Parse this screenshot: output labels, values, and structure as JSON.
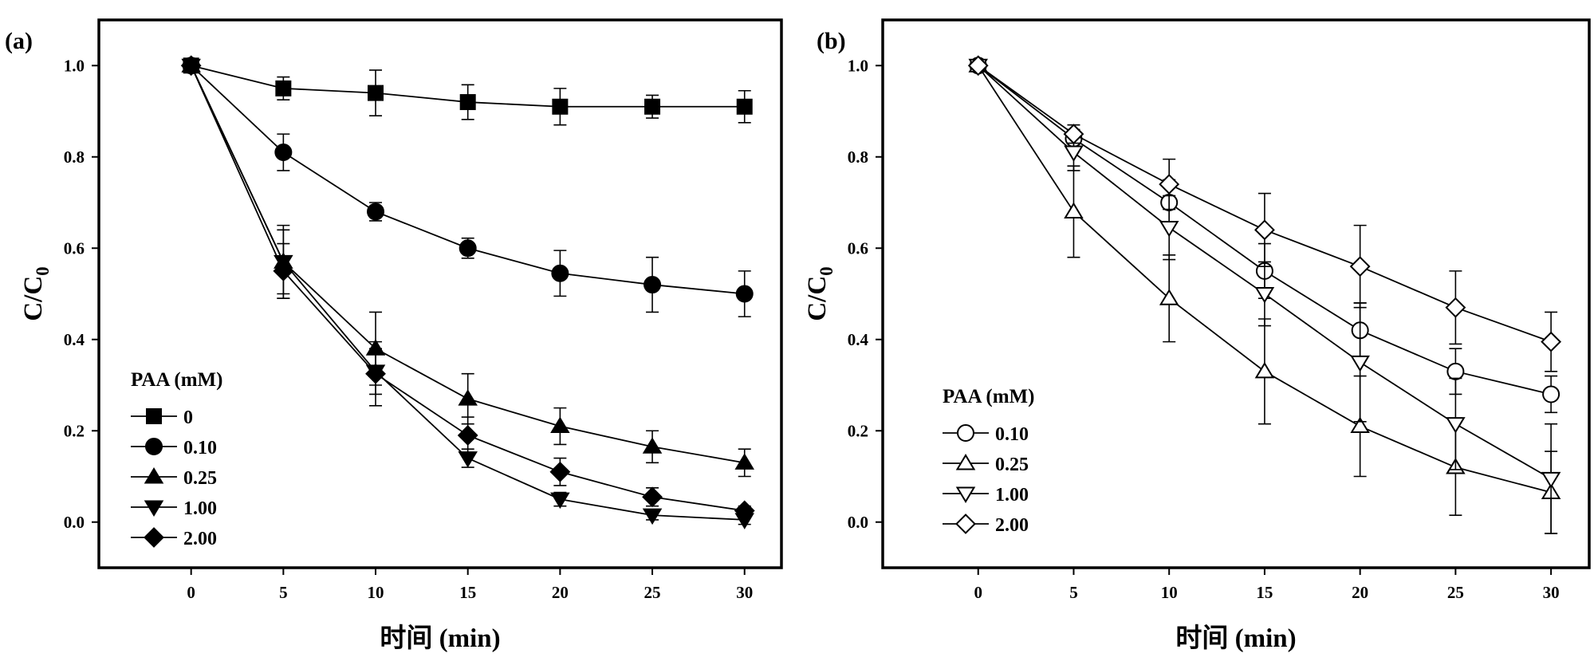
{
  "chart_data": [
    {
      "type": "line",
      "panel_label": "(a)",
      "xlabel": "时间 (min)",
      "ylabel_main": "C/C",
      "ylabel_sub": "0",
      "xlim": [
        -5,
        32
      ],
      "ylim": [
        -0.1,
        1.1
      ],
      "x_ticks": [
        0,
        5,
        10,
        15,
        20,
        25,
        30
      ],
      "y_ticks": [
        "0.0",
        "0.2",
        "0.4",
        "0.6",
        "0.8",
        "1.0"
      ],
      "legend_title": "PAA (mM)",
      "legend_position": "bottom-left",
      "marker_fill": "#000000",
      "x": [
        0,
        5,
        10,
        15,
        20,
        25,
        30
      ],
      "series": [
        {
          "name": "0",
          "marker": "square",
          "values": [
            1.0,
            0.95,
            0.94,
            0.92,
            0.91,
            0.91,
            0.91
          ],
          "errors": [
            0,
            0.025,
            0.05,
            0.038,
            0.04,
            0.025,
            0.035
          ]
        },
        {
          "name": "0.10",
          "marker": "circle",
          "values": [
            1.0,
            0.81,
            0.68,
            0.6,
            0.545,
            0.52,
            0.5
          ],
          "errors": [
            0,
            0.04,
            0.02,
            0.022,
            0.05,
            0.06,
            0.05
          ]
        },
        {
          "name": "0.25",
          "marker": "triangle-up",
          "values": [
            1.0,
            0.57,
            0.38,
            0.27,
            0.21,
            0.165,
            0.13
          ],
          "errors": [
            0,
            0.08,
            0.08,
            0.055,
            0.04,
            0.035,
            0.03
          ]
        },
        {
          "name": "1.00",
          "marker": "triangle-down",
          "values": [
            1.0,
            0.57,
            0.33,
            0.14,
            0.05,
            0.015,
            0.005
          ],
          "errors": [
            0,
            0.07,
            0.05,
            0.02,
            0.015,
            0.01,
            0.01
          ]
        },
        {
          "name": "2.00",
          "marker": "diamond",
          "values": [
            1.0,
            0.55,
            0.325,
            0.19,
            0.11,
            0.055,
            0.025
          ],
          "errors": [
            0,
            0.06,
            0.07,
            0.04,
            0.03,
            0.02,
            0.01
          ]
        }
      ]
    },
    {
      "type": "line",
      "panel_label": "(b)",
      "xlabel": "时间 (min)",
      "ylabel_main": "C/C",
      "ylabel_sub": "0",
      "xlim": [
        -5,
        32
      ],
      "ylim": [
        -0.1,
        1.1
      ],
      "x_ticks": [
        0,
        5,
        10,
        15,
        20,
        25,
        30
      ],
      "y_ticks": [
        "0.0",
        "0.2",
        "0.4",
        "0.6",
        "0.8",
        "1.0"
      ],
      "legend_title": "PAA (mM)",
      "legend_position": "bottom-left",
      "marker_fill": "#ffffff",
      "x": [
        0,
        5,
        10,
        15,
        20,
        25,
        30
      ],
      "series": [
        {
          "name": "0.10",
          "marker": "circle",
          "values": [
            1.0,
            0.84,
            0.7,
            0.55,
            0.42,
            0.33,
            0.28
          ],
          "errors": [
            0,
            0.02,
            0.05,
            0.06,
            0.06,
            0.05,
            0.04
          ]
        },
        {
          "name": "0.25",
          "marker": "triangle-up",
          "values": [
            1.0,
            0.68,
            0.49,
            0.33,
            0.21,
            0.12,
            0.065
          ],
          "errors": [
            0,
            0.1,
            0.095,
            0.115,
            0.11,
            0.105,
            0.09
          ]
        },
        {
          "name": "1.00",
          "marker": "triangle-down",
          "values": [
            1.0,
            0.81,
            0.645,
            0.5,
            0.35,
            0.215,
            0.095
          ],
          "errors": [
            0,
            0.04,
            0.07,
            0.07,
            0.13,
            0.1,
            0.12
          ]
        },
        {
          "name": "2.00",
          "marker": "diamond",
          "values": [
            1.0,
            0.85,
            0.74,
            0.64,
            0.56,
            0.47,
            0.395
          ],
          "errors": [
            0,
            0.02,
            0.055,
            0.08,
            0.09,
            0.08,
            0.065
          ]
        }
      ]
    }
  ]
}
